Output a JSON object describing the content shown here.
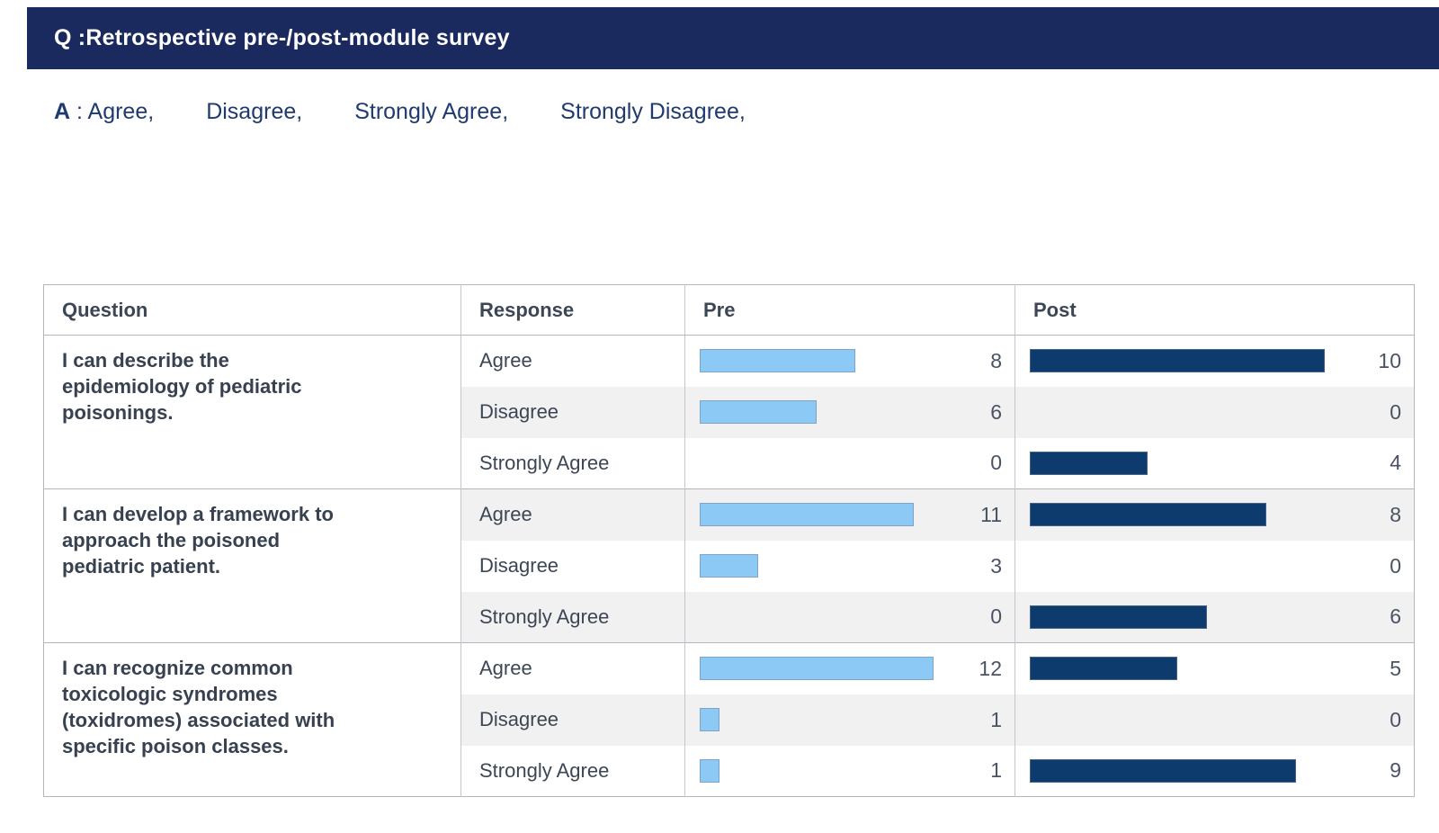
{
  "header": {
    "title": "Q :Retrospective pre-/post-module survey",
    "bg_color": "#1b2a5e"
  },
  "answer": {
    "prefix": "A",
    "separator": " : ",
    "options": [
      "Agree,",
      "Disagree,",
      "Strongly Agree,",
      "Strongly Disagree,"
    ]
  },
  "table": {
    "columns": [
      "Question",
      "Response",
      "Pre",
      "Post"
    ]
  },
  "chart_data": {
    "type": "table",
    "title": "Q :Retrospective pre-/post-module survey",
    "answer_options": [
      "Agree",
      "Disagree",
      "Strongly Agree",
      "Strongly Disagree"
    ],
    "columns": [
      "Question",
      "Response",
      "Pre",
      "Post"
    ],
    "series_names": [
      "Pre",
      "Post"
    ],
    "questions": [
      {
        "question": "I can describe the epidemiology of pediatric poisonings.",
        "rows": [
          {
            "response": "Agree",
            "pre": 8,
            "post": 10
          },
          {
            "response": "Disagree",
            "pre": 6,
            "post": 0
          },
          {
            "response": "Strongly Agree",
            "pre": 0,
            "post": 4
          }
        ]
      },
      {
        "question": "I can develop a framework to approach the poisoned pediatric patient.",
        "rows": [
          {
            "response": "Agree",
            "pre": 11,
            "post": 8
          },
          {
            "response": "Disagree",
            "pre": 3,
            "post": 0
          },
          {
            "response": "Strongly Agree",
            "pre": 0,
            "post": 6
          }
        ]
      },
      {
        "question": "I can recognize common toxicologic syndromes (toxidromes) associated with specific poison classes.",
        "rows": [
          {
            "response": "Agree",
            "pre": 12,
            "post": 5
          },
          {
            "response": "Disagree",
            "pre": 1,
            "post": 0
          },
          {
            "response": "Strongly Agree",
            "pre": 1,
            "post": 9
          }
        ]
      }
    ],
    "pre_axis_max": 12,
    "post_axis_max": 10,
    "bar_colors": {
      "pre": "#8CCAF5",
      "post": "#0D3B6D"
    },
    "legend_position": "none",
    "grid": false
  }
}
